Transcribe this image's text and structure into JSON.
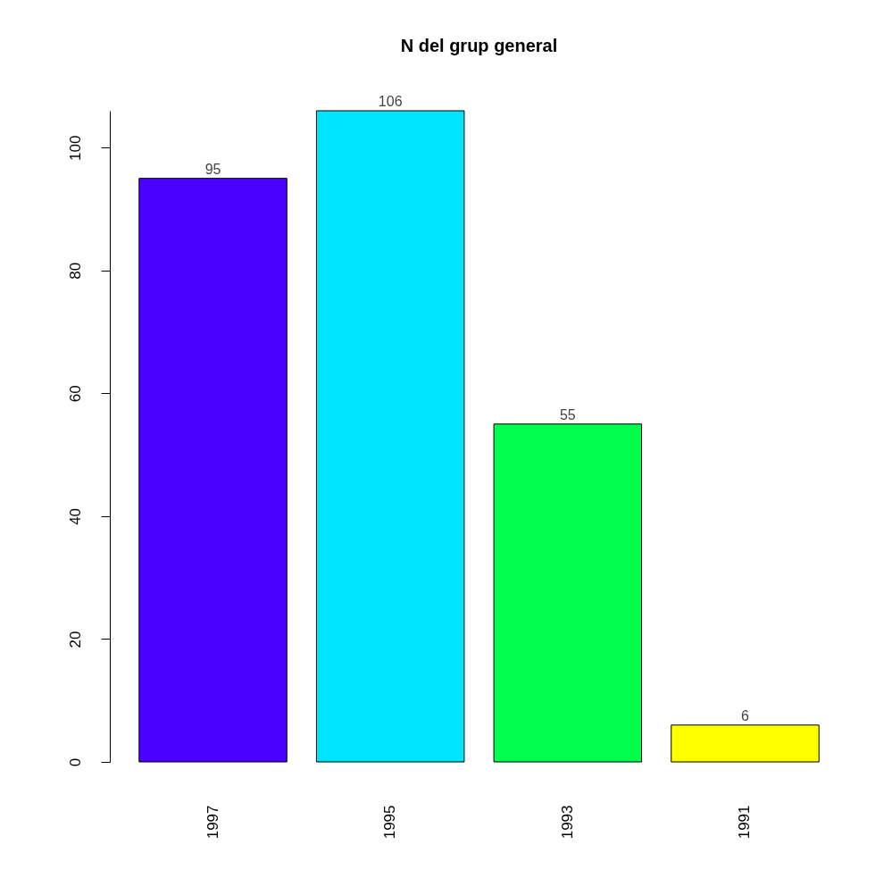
{
  "chart_data": {
    "type": "bar",
    "title": "N del grup general",
    "categories": [
      "1997",
      "1995",
      "1993",
      "1991"
    ],
    "values": [
      95,
      106,
      55,
      6
    ],
    "colors": [
      "#4c00ff",
      "#00e5ff",
      "#00ff4d",
      "#ffff00"
    ],
    "ylim": [
      0,
      106
    ],
    "yticks": [
      0,
      20,
      40,
      60,
      80,
      100
    ],
    "data_labels": true,
    "grid": false,
    "legend": false
  }
}
